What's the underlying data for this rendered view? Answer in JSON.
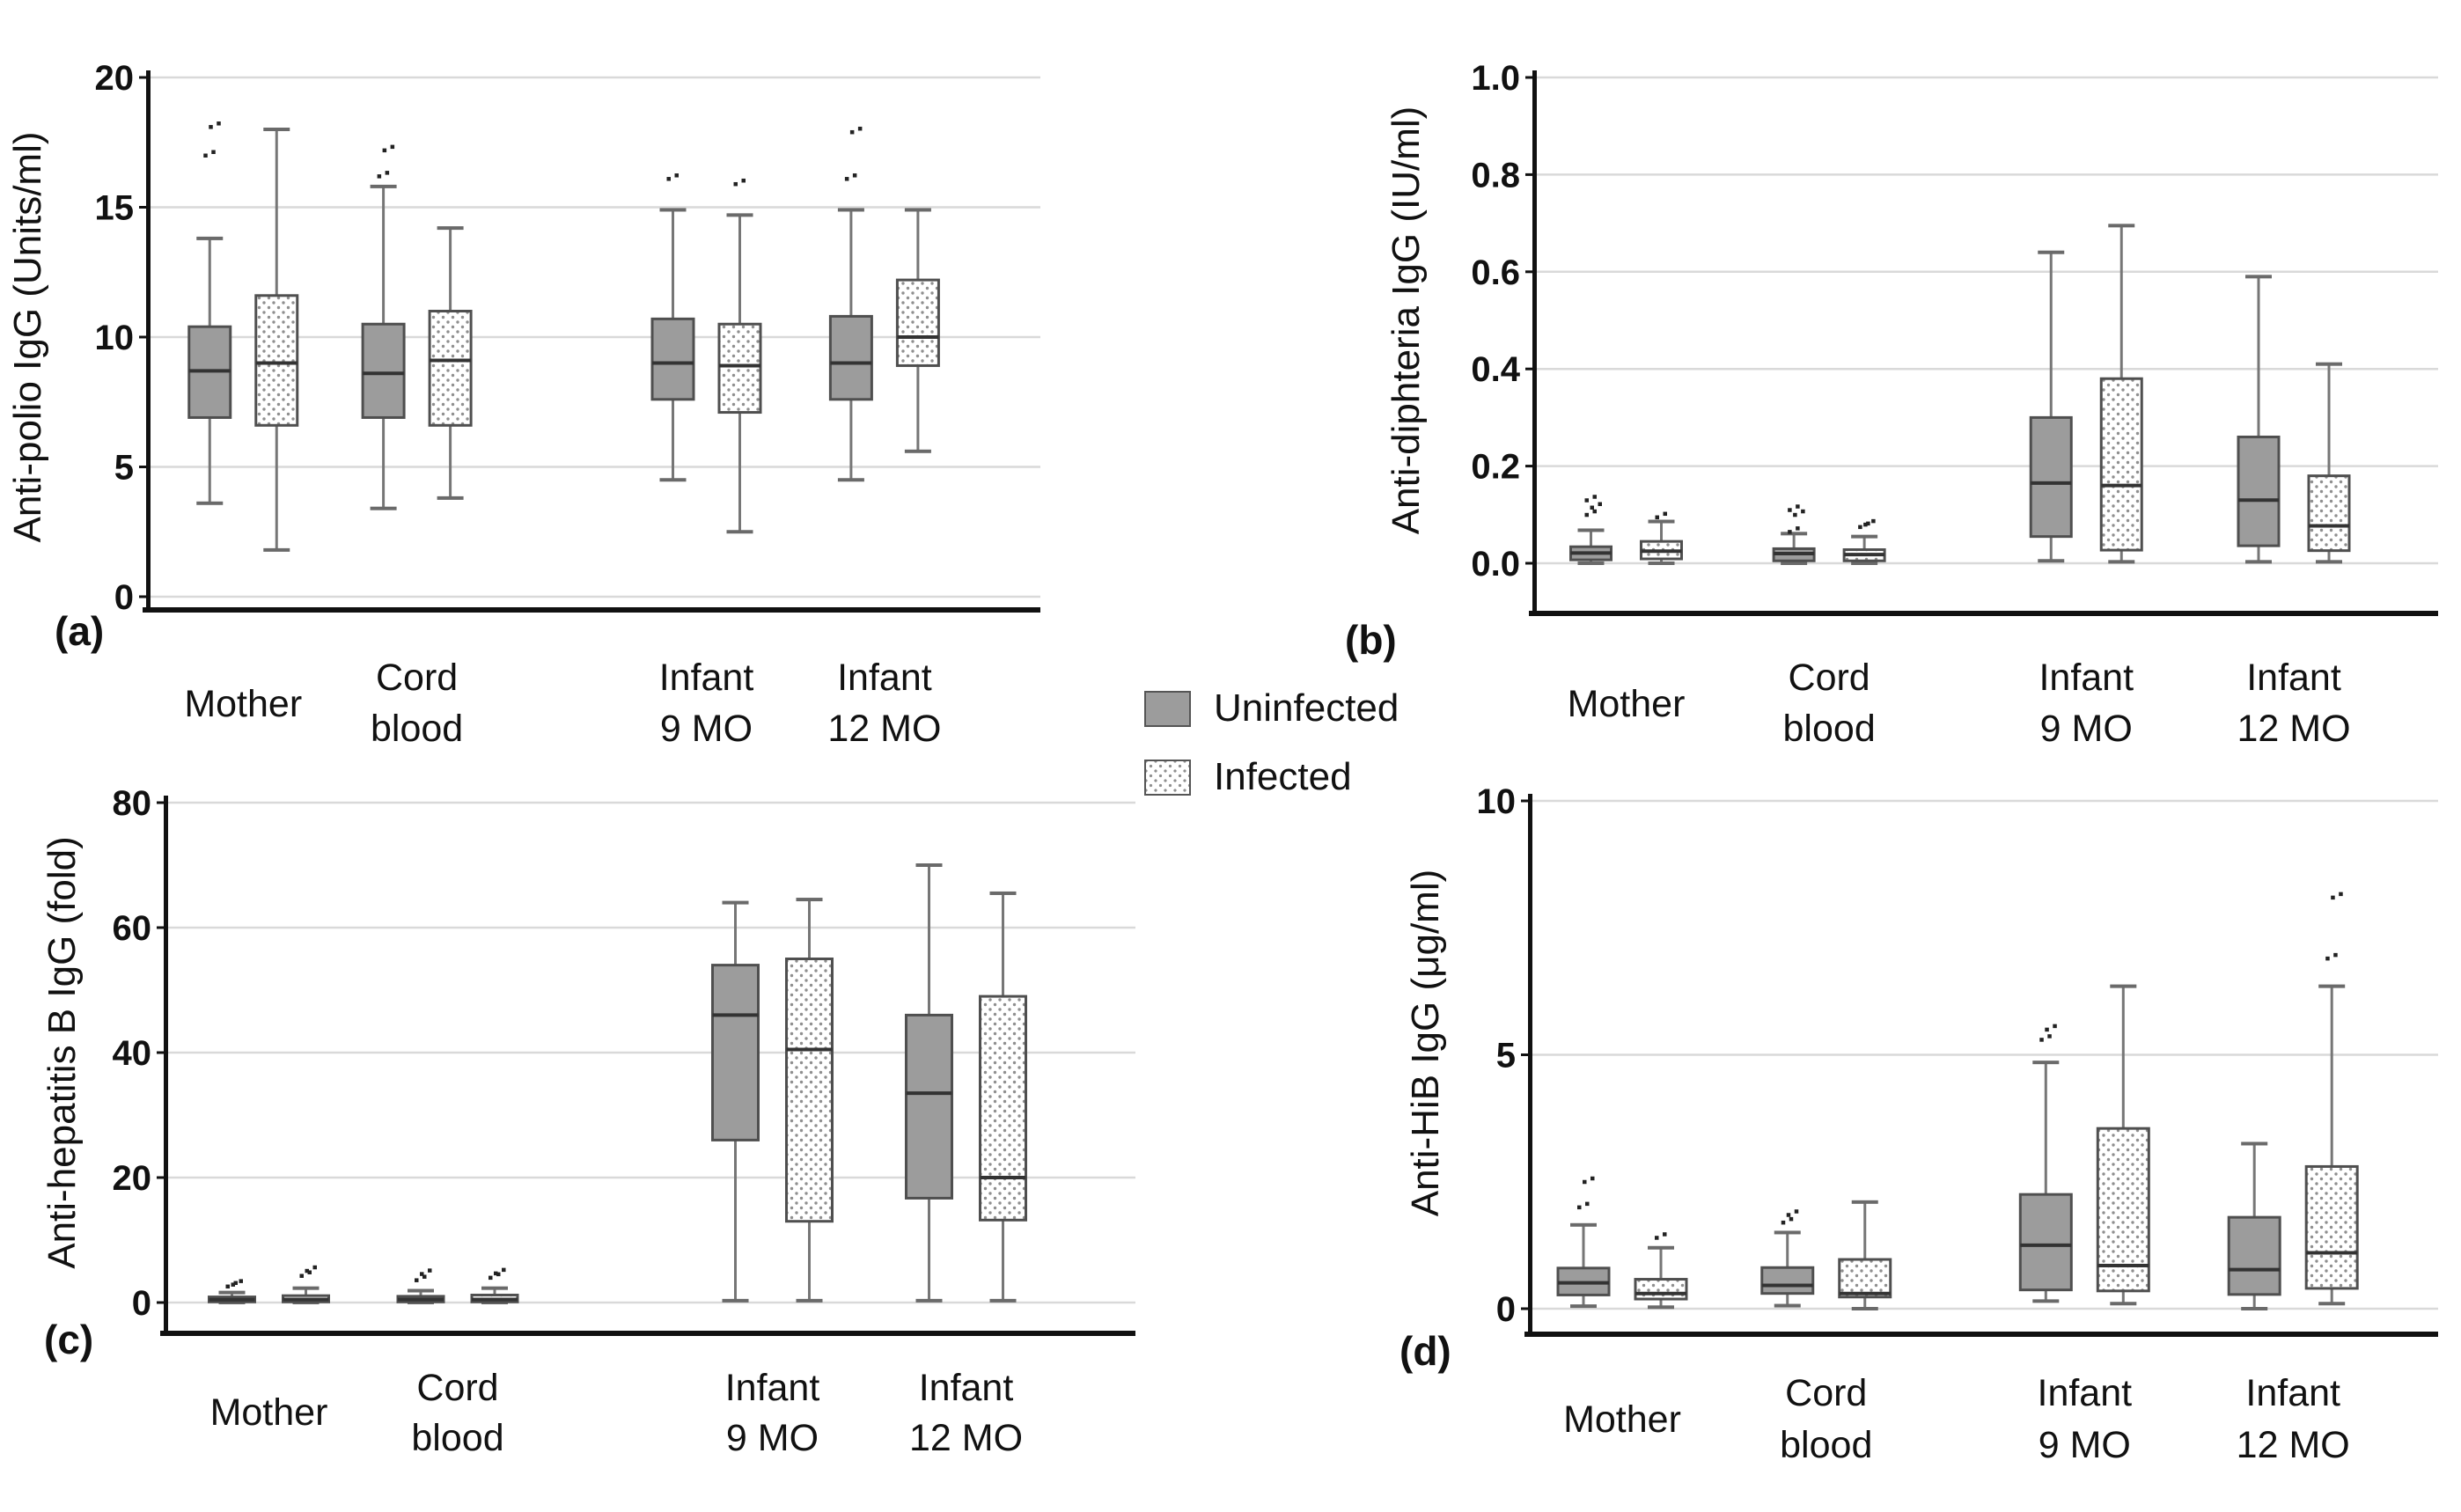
{
  "figure": {
    "legend": {
      "items": [
        {
          "label": "Uninfected",
          "series": "uninfected"
        },
        {
          "label": "Infected",
          "series": "infected"
        }
      ]
    }
  },
  "colors": {
    "uninfected_fill": "#9c9c9c",
    "infected_dot": "#8f8f8f",
    "box_stroke": "#4f4f4f",
    "median": "#333333",
    "whisker": "#767676",
    "whisker_cap": "#6a6a6a",
    "gridline": "#d9d9d9",
    "axis": "#111111",
    "outlier": "#222222",
    "text": "#111111"
  },
  "chart_data": [
    {
      "type": "box",
      "panel_label": "(a)",
      "ylabel": "Anti-polio IgG (Units/ml)",
      "ylim": [
        0,
        20
      ],
      "yticks": [
        0,
        5,
        10,
        15,
        20
      ],
      "ytick_labels": [
        "0",
        "5",
        "10",
        "15",
        "20"
      ],
      "grid": true,
      "legend_position": "center-of-figure",
      "categories": [
        [
          "Mother"
        ],
        [
          "Cord",
          "blood"
        ],
        [
          "Infant",
          "9 MO"
        ],
        [
          "Infant",
          "12 MO"
        ]
      ],
      "series": [
        {
          "name": "Uninfected",
          "boxes": [
            {
              "lo": 3.6,
              "q1": 6.9,
              "med": 8.7,
              "q3": 10.4,
              "hi": 13.8,
              "out": [
                17.0,
                18.1
              ]
            },
            {
              "lo": 3.4,
              "q1": 6.9,
              "med": 8.6,
              "q3": 10.5,
              "hi": 15.8,
              "out": [
                16.2,
                17.2
              ]
            },
            {
              "lo": 4.5,
              "q1": 7.6,
              "med": 9.0,
              "q3": 10.7,
              "hi": 14.9,
              "out": [
                16.1
              ]
            },
            {
              "lo": 4.5,
              "q1": 7.6,
              "med": 9.0,
              "q3": 10.8,
              "hi": 14.9,
              "out": [
                16.1,
                17.9
              ]
            }
          ]
        },
        {
          "name": "Infected",
          "boxes": [
            {
              "lo": 1.8,
              "q1": 6.6,
              "med": 9.0,
              "q3": 11.6,
              "hi": 18.0,
              "out": []
            },
            {
              "lo": 3.8,
              "q1": 6.6,
              "med": 9.1,
              "q3": 11.0,
              "hi": 14.2,
              "out": []
            },
            {
              "lo": 2.5,
              "q1": 7.1,
              "med": 8.9,
              "q3": 10.5,
              "hi": 14.7,
              "out": [
                15.9
              ]
            },
            {
              "lo": 5.6,
              "q1": 8.9,
              "med": 10.0,
              "q3": 12.2,
              "hi": 14.9,
              "out": []
            }
          ]
        }
      ]
    },
    {
      "type": "box",
      "panel_label": "(b)",
      "ylabel": "Anti-diphteria IgG (IU/ml)",
      "ylim": [
        0,
        1.0
      ],
      "yticks": [
        0.0,
        0.2,
        0.4,
        0.6,
        0.8,
        1.0
      ],
      "ytick_labels": [
        "0.0",
        "0.2",
        "0.4",
        "0.6",
        "0.8",
        "1.0"
      ],
      "grid": true,
      "categories": [
        [
          "Mother"
        ],
        [
          "Cord",
          "blood"
        ],
        [
          "Infant",
          "9 MO"
        ],
        [
          "Infant",
          "12 MO"
        ]
      ],
      "series": [
        {
          "name": "Uninfected",
          "boxes": [
            {
              "lo": 0.0,
              "q1": 0.007,
              "med": 0.021,
              "q3": 0.034,
              "hi": 0.068,
              "out": [
                0.1,
                0.115,
                0.13
              ]
            },
            {
              "lo": 0.0,
              "q1": 0.005,
              "med": 0.02,
              "q3": 0.03,
              "hi": 0.061,
              "out": [
                0.065,
                0.1,
                0.11
              ]
            },
            {
              "lo": 0.005,
              "q1": 0.055,
              "med": 0.165,
              "q3": 0.3,
              "hi": 0.64,
              "out": []
            },
            {
              "lo": 0.003,
              "q1": 0.036,
              "med": 0.13,
              "q3": 0.26,
              "hi": 0.59,
              "out": []
            }
          ]
        },
        {
          "name": "Infected",
          "boxes": [
            {
              "lo": 0.0,
              "q1": 0.009,
              "med": 0.025,
              "q3": 0.045,
              "hi": 0.086,
              "out": [
                0.095
              ]
            },
            {
              "lo": 0.0,
              "q1": 0.005,
              "med": 0.018,
              "q3": 0.028,
              "hi": 0.055,
              "out": [
                0.075,
                0.08
              ]
            },
            {
              "lo": 0.003,
              "q1": 0.027,
              "med": 0.16,
              "q3": 0.38,
              "hi": 0.695,
              "out": []
            },
            {
              "lo": 0.003,
              "q1": 0.026,
              "med": 0.077,
              "q3": 0.18,
              "hi": 0.41,
              "out": []
            }
          ]
        }
      ]
    },
    {
      "type": "box",
      "panel_label": "(c)",
      "ylabel": "Anti-hepatitis B IgG (fold)",
      "ylim": [
        0,
        80
      ],
      "yticks": [
        0,
        20,
        40,
        60,
        80
      ],
      "ytick_labels": [
        "0",
        "20",
        "40",
        "60",
        "80"
      ],
      "grid": true,
      "categories": [
        [
          "Mother"
        ],
        [
          "Cord",
          "blood"
        ],
        [
          "Infant",
          "9 MO"
        ],
        [
          "Infant",
          "12 MO"
        ]
      ],
      "series": [
        {
          "name": "Uninfected",
          "boxes": [
            {
              "lo": 0.0,
              "q1": 0.1,
              "med": 0.45,
              "q3": 0.9,
              "hi": 1.6,
              "out": [
                2.6,
                2.9
              ]
            },
            {
              "lo": 0.0,
              "q1": 0.1,
              "med": 0.5,
              "q3": 1.0,
              "hi": 1.9,
              "out": [
                3.6,
                4.6
              ]
            },
            {
              "lo": 0.3,
              "q1": 26.0,
              "med": 46.0,
              "q3": 54.0,
              "hi": 64.0,
              "out": []
            },
            {
              "lo": 0.3,
              "q1": 16.7,
              "med": 33.5,
              "q3": 46.0,
              "hi": 70.0,
              "out": []
            }
          ]
        },
        {
          "name": "Infected",
          "boxes": [
            {
              "lo": 0.0,
              "q1": 0.1,
              "med": 0.5,
              "q3": 1.1,
              "hi": 2.3,
              "out": [
                4.3,
                5.1
              ]
            },
            {
              "lo": 0.0,
              "q1": 0.1,
              "med": 0.5,
              "q3": 1.2,
              "hi": 2.3,
              "out": [
                4.0,
                4.7
              ]
            },
            {
              "lo": 0.3,
              "q1": 13.0,
              "med": 40.5,
              "q3": 55.0,
              "hi": 64.5,
              "out": []
            },
            {
              "lo": 0.3,
              "q1": 13.2,
              "med": 20.0,
              "q3": 49.0,
              "hi": 65.5,
              "out": []
            }
          ]
        }
      ]
    },
    {
      "type": "box",
      "panel_label": "(d)",
      "ylabel": "Anti-HiB IgG (μg/ml)",
      "ylim": [
        0,
        10
      ],
      "yticks": [
        0,
        5,
        10
      ],
      "ytick_labels": [
        "0",
        "5",
        "10"
      ],
      "grid": true,
      "categories": [
        [
          "Mother"
        ],
        [
          "Cord",
          "blood"
        ],
        [
          "Infant",
          "9 MO"
        ],
        [
          "Infant",
          "12 MO"
        ]
      ],
      "series": [
        {
          "name": "Uninfected",
          "boxes": [
            {
              "lo": 0.05,
              "q1": 0.27,
              "med": 0.51,
              "q3": 0.8,
              "hi": 1.65,
              "out": [
                2.0,
                2.5
              ]
            },
            {
              "lo": 0.06,
              "q1": 0.3,
              "med": 0.46,
              "q3": 0.81,
              "hi": 1.5,
              "out": [
                1.7,
                1.85
              ]
            },
            {
              "lo": 0.15,
              "q1": 0.37,
              "med": 1.25,
              "q3": 2.25,
              "hi": 4.85,
              "out": [
                5.3,
                5.5
              ]
            },
            {
              "lo": 0.0,
              "q1": 0.28,
              "med": 0.77,
              "q3": 1.8,
              "hi": 3.25,
              "out": []
            }
          ]
        },
        {
          "name": "Infected",
          "boxes": [
            {
              "lo": 0.03,
              "q1": 0.19,
              "med": 0.3,
              "q3": 0.58,
              "hi": 1.2,
              "out": [
                1.4
              ]
            },
            {
              "lo": 0.0,
              "q1": 0.23,
              "med": 0.3,
              "q3": 0.97,
              "hi": 2.1,
              "out": []
            },
            {
              "lo": 0.1,
              "q1": 0.35,
              "med": 0.85,
              "q3": 3.55,
              "hi": 6.35,
              "out": []
            },
            {
              "lo": 0.1,
              "q1": 0.4,
              "med": 1.1,
              "q3": 2.8,
              "hi": 6.35,
              "out": [
                6.9,
                8.1
              ]
            }
          ]
        }
      ]
    }
  ]
}
